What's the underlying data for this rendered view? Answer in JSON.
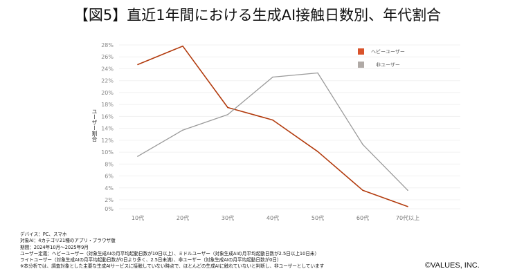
{
  "title": "【図5】直近1年間における生成AI接触日数別、年代割合",
  "chart_data": {
    "type": "line",
    "title": "【図5】直近1年間における生成AI接触日数別、年代割合",
    "xlabel": "",
    "ylabel": "ユーザー割合",
    "categories": [
      "10代",
      "20代",
      "30代",
      "40代",
      "50代",
      "60代",
      "70代以上"
    ],
    "y_ticks": [
      "0%",
      "2%",
      "4%",
      "6%",
      "8%",
      "10%",
      "12%",
      "14%",
      "16%",
      "18%",
      "20%",
      "22%",
      "24%",
      "26%",
      "28%"
    ],
    "ylim": [
      0,
      28
    ],
    "grid": true,
    "legend_position": "top-right",
    "series": [
      {
        "name": "ヘビーユーザー",
        "color": "#b23a0c",
        "legend_color": "#d9532b",
        "values": [
          24.7,
          27.8,
          17.5,
          15.4,
          10.1,
          3.6,
          0.5
        ]
      },
      {
        "name": "非ユーザー",
        "color": "#9a9a9a",
        "legend_color": "#b0aaa6",
        "values": [
          9.3,
          13.7,
          16.3,
          22.6,
          23.3,
          11.3,
          3.6
        ]
      }
    ]
  },
  "notes": [
    "デバイス：PC、スマホ",
    "対象AI：4カテゴリ21種のアプリ・ブラウザ版",
    "期間：2024年10月～2025年9月",
    "ユーザー定義：ヘビーユーザー（対象生成AIの月平均起動日数が10日以上）、ミドルユーザー（対象生成AIの月平均起動日数が2.5日以上10日未）",
    "ライトユーザー（対象生成AIの月平均起動日数が0日より多く、2.5日未満）、非ユーザー（対象生成AIの月平均起動日数が0日）",
    "※本分析では、調査対象とした主要な生成AIサービスに接触していない時点で、ほとんどの生成AIに触れていないと判断し、非ユーザーとしています"
  ],
  "copyright": "©VALUES, INC."
}
